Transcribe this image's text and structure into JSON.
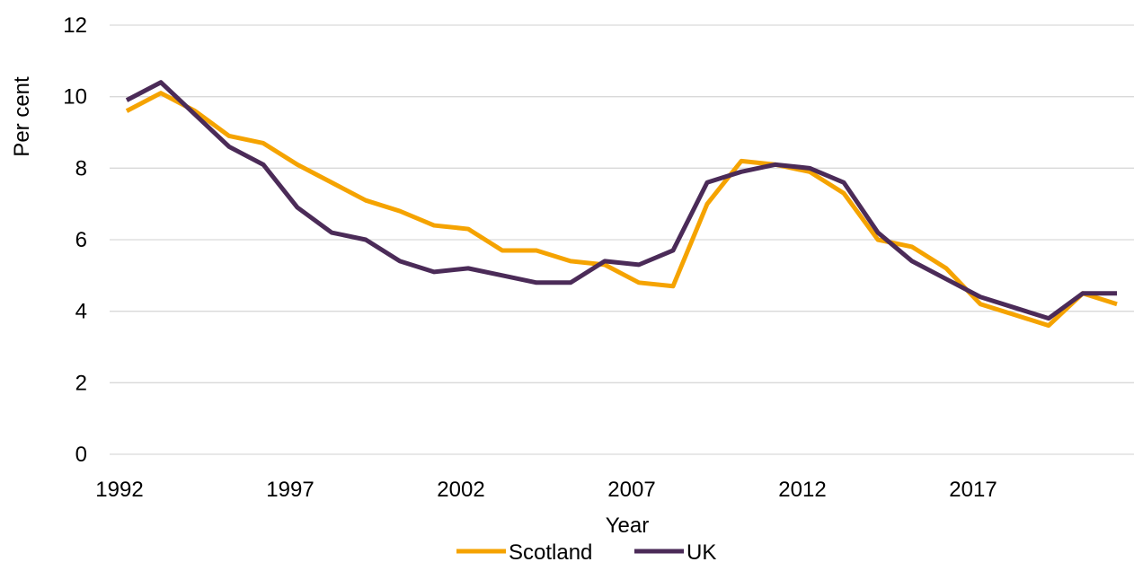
{
  "chart_data": {
    "type": "line",
    "title": "",
    "xlabel": "Year",
    "ylabel": "Per cent",
    "x": [
      1992,
      1993,
      1994,
      1995,
      1996,
      1997,
      1998,
      1999,
      2000,
      2001,
      2002,
      2003,
      2004,
      2005,
      2006,
      2007,
      2008,
      2009,
      2010,
      2011,
      2012,
      2013,
      2014,
      2015,
      2016,
      2017,
      2018,
      2019,
      2020,
      2021
    ],
    "xlim": [
      1992,
      2021
    ],
    "xticks": [
      "1992",
      "1997",
      "2002",
      "2007",
      "2012",
      "2017"
    ],
    "ylim": [
      0,
      12
    ],
    "yticks": [
      "0",
      "2",
      "4",
      "6",
      "8",
      "10",
      "12"
    ],
    "grid": true,
    "legend_position": "bottom",
    "series": [
      {
        "name": "Scotland",
        "color": "#f5a300",
        "values": [
          9.6,
          10.1,
          9.6,
          8.9,
          8.7,
          8.1,
          7.6,
          7.1,
          6.8,
          6.4,
          6.3,
          5.7,
          5.7,
          5.4,
          5.3,
          4.8,
          4.7,
          7.0,
          8.2,
          8.1,
          7.9,
          7.3,
          6.0,
          5.8,
          5.2,
          4.2,
          3.9,
          3.6,
          4.5,
          4.2
        ]
      },
      {
        "name": "UK",
        "color": "#4b2b58",
        "values": [
          9.9,
          10.4,
          9.5,
          8.6,
          8.1,
          6.9,
          6.2,
          6.0,
          5.4,
          5.1,
          5.2,
          5.0,
          4.8,
          4.8,
          5.4,
          5.3,
          5.7,
          7.6,
          7.9,
          8.1,
          8.0,
          7.6,
          6.2,
          5.4,
          4.9,
          4.4,
          4.1,
          3.8,
          4.5,
          4.5
        ]
      }
    ]
  }
}
